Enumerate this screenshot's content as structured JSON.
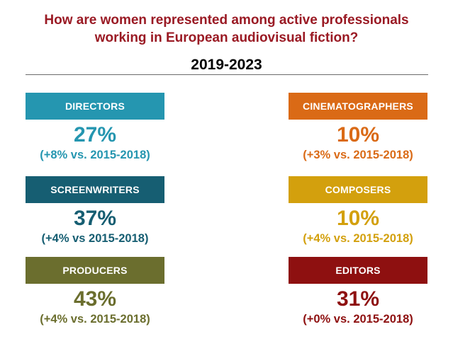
{
  "title": {
    "line1": "How are women represented among active professionals",
    "line2": "working in European audiovisual fiction?"
  },
  "period": "2019-2023",
  "colors": {
    "title": "#9a1a24",
    "directors": "#2596b0",
    "screenwriters": "#165e72",
    "producers": "#6b6e2e",
    "cinematographers": "#da6a16",
    "composers": "#d3a00d",
    "editors": "#8e1010"
  },
  "roles": {
    "directors": {
      "label": "DIRECTORS",
      "percent": "27%",
      "change": "(+8% vs. 2015-2018)"
    },
    "screenwriters": {
      "label": "SCREENWRITERS",
      "percent": "37%",
      "change": "(+4% vs 2015-2018)"
    },
    "producers": {
      "label": "PRODUCERS",
      "percent": "43%",
      "change": "(+4% vs. 2015-2018)"
    },
    "cinematographers": {
      "label": "CINEMATOGRAPHERS",
      "percent": "10%",
      "change": "(+3% vs. 2015-2018)"
    },
    "composers": {
      "label": "COMPOSERS",
      "percent": "10%",
      "change": "(+4% vs. 2015-2018)"
    },
    "editors": {
      "label": "EDITORS",
      "percent": "31%",
      "change": "(+0% vs. 2015-2018)"
    }
  }
}
